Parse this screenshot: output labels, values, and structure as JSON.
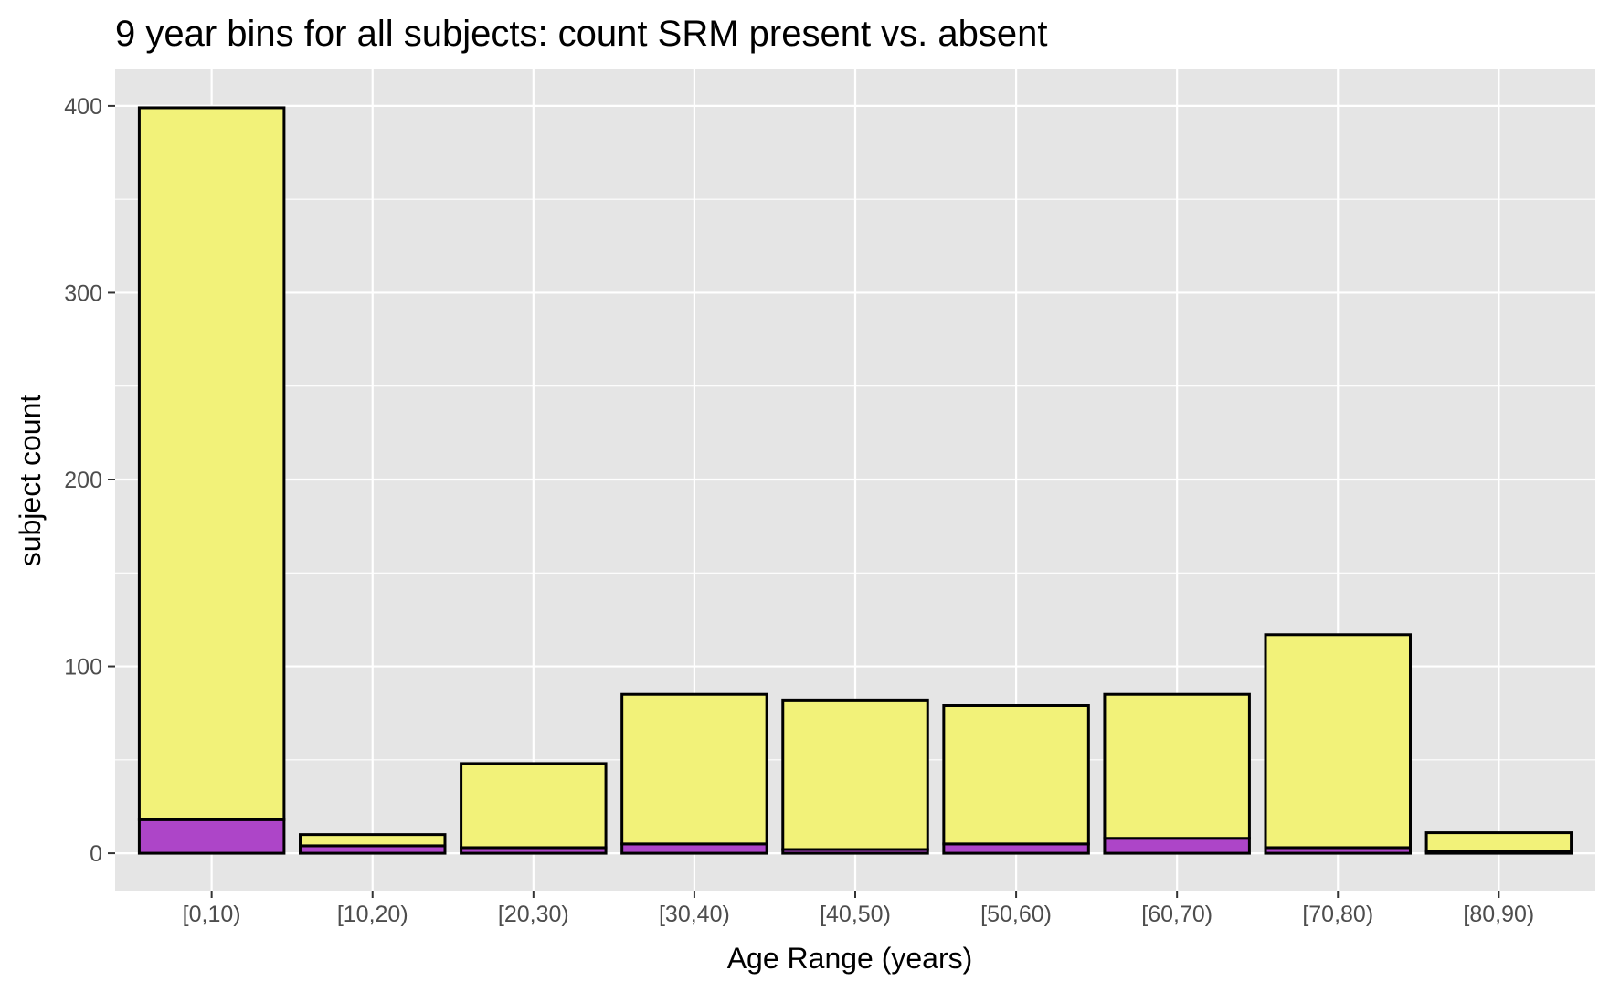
{
  "chart_data": {
    "type": "bar",
    "stacked": true,
    "title": "9 year bins for all subjects: count SRM present vs. absent",
    "xlabel": "Age Range (years)",
    "ylabel": "subject count",
    "categories": [
      "[0,10)",
      "[10,20)",
      "[20,30)",
      "[30,40)",
      "[40,50)",
      "[50,60)",
      "[60,70)",
      "[70,80)",
      "[80,90)"
    ],
    "series": [
      {
        "color": "#ad45c8",
        "values": [
          18,
          4,
          3,
          5,
          2,
          5,
          8,
          3,
          1
        ]
      },
      {
        "color": "#f2f279",
        "values": [
          381,
          6,
          45,
          80,
          80,
          74,
          77,
          114,
          10
        ]
      }
    ],
    "totals": [
      399,
      10,
      48,
      85,
      82,
      79,
      85,
      117,
      11
    ],
    "ylim": [
      -20,
      420
    ],
    "yticks": [
      0,
      100,
      200,
      300,
      400
    ],
    "grid": true,
    "legend": "none",
    "panel_background": "#e5e5e5"
  }
}
